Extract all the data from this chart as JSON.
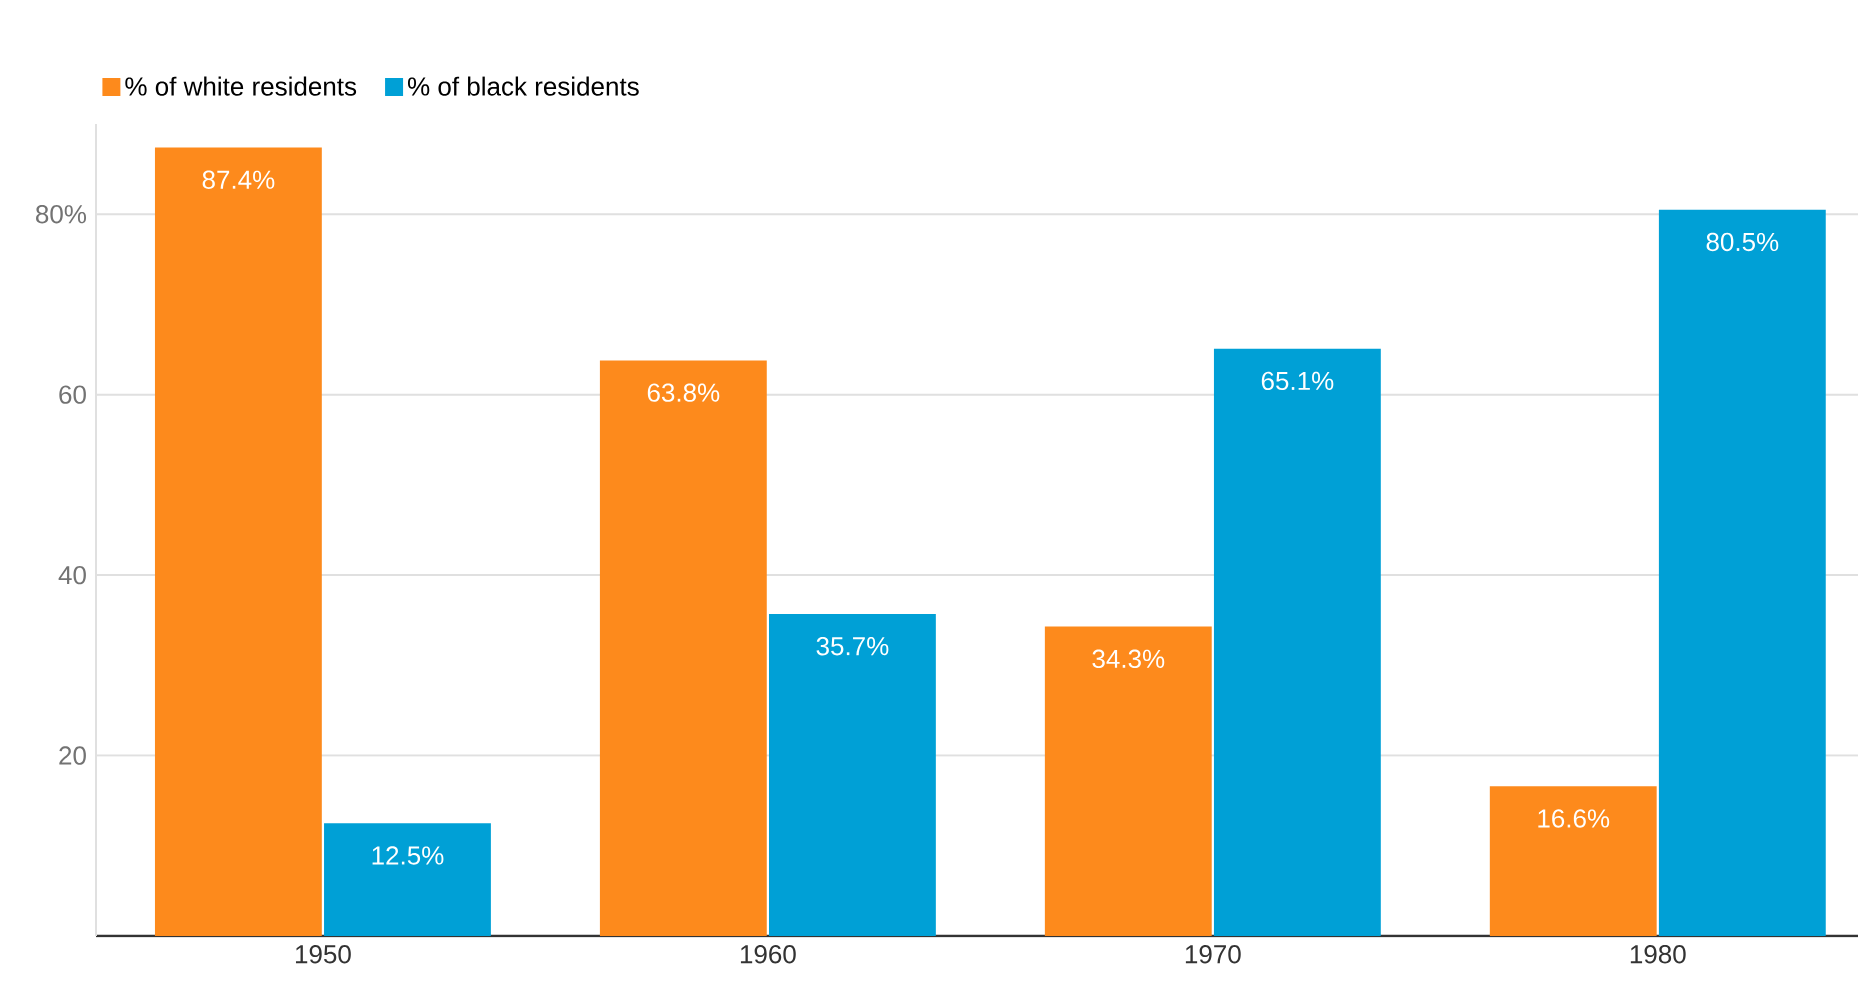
{
  "chart_data": {
    "type": "bar",
    "categories": [
      "1950",
      "1960",
      "1970",
      "1980"
    ],
    "series": [
      {
        "name": "% of white residents",
        "color": "#fd8a1c",
        "values": [
          87.4,
          63.8,
          34.3,
          16.6
        ],
        "value_labels": [
          "87.4%",
          "63.8%",
          "34.3%",
          "16.6%"
        ]
      },
      {
        "name": "% of black residents",
        "color": "#00a0d6",
        "values": [
          12.5,
          35.7,
          65.1,
          80.5
        ],
        "value_labels": [
          "12.5%",
          "35.7%",
          "65.1%",
          "80.5%"
        ]
      }
    ],
    "ylim": [
      0,
      90
    ],
    "yticks": [
      20,
      40,
      60,
      {
        "value": 80,
        "label": "80%"
      }
    ],
    "grid": "y",
    "legend": "top left"
  }
}
